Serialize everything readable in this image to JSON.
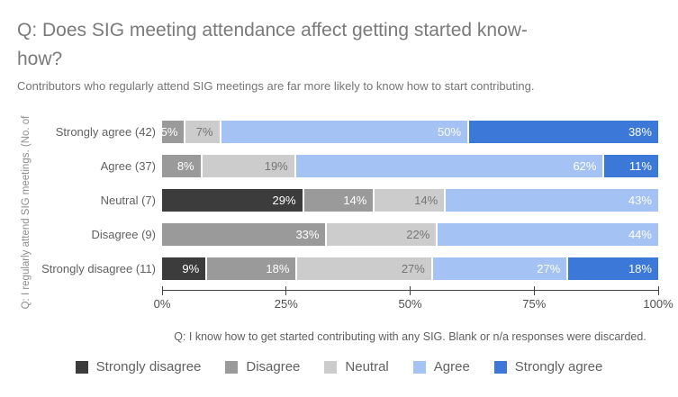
{
  "title_line1": "Q: Does SIG meeting attendance affect getting started know-",
  "title_line2": "how?",
  "subtitle": "Contributors who regularly attend SIG meetings are far more likely to know how to start contributing.",
  "y_axis_title": "Q: I regularly attend SIG meetings. (No. of",
  "caption": "Q: I know how to get started contributing with any SIG. Blank or n/a responses were discarded.",
  "colors": {
    "strongly_disagree": "#3c3c3c",
    "disagree": "#9a9a9a",
    "neutral": "#cccccc",
    "agree": "#a4c2f4",
    "strongly_agree": "#3b78d8",
    "axis_line": "#424242",
    "background": "#ffffff"
  },
  "legend": [
    {
      "key": "strongly_disagree",
      "label": "Strongly disagree"
    },
    {
      "key": "disagree",
      "label": "Disagree"
    },
    {
      "key": "neutral",
      "label": "Neutral"
    },
    {
      "key": "agree",
      "label": "Agree"
    },
    {
      "key": "strongly_agree",
      "label": "Strongly agree"
    }
  ],
  "chart_data": {
    "type": "bar",
    "orientation": "horizontal",
    "stacked": true,
    "unit": "percent",
    "xlim": [
      0,
      100
    ],
    "x_ticks": [
      "0%",
      "25%",
      "50%",
      "75%",
      "100%"
    ],
    "categories": [
      "Strongly agree (42)",
      "Agree (37)",
      "Neutral (7)",
      "Disagree (9)",
      "Strongly disagree (11)"
    ],
    "legend_position": "bottom",
    "rows": [
      {
        "label": "Strongly agree (42)",
        "segments": [
          {
            "series": "disagree",
            "pct_label": "5%",
            "value": 4.8
          },
          {
            "series": "neutral",
            "pct_label": "7%",
            "value": 7.1
          },
          {
            "series": "agree",
            "pct_label": "50%",
            "value": 50.0
          },
          {
            "series": "strongly_agree",
            "pct_label": "38%",
            "value": 38.1
          }
        ]
      },
      {
        "label": "Agree (37)",
        "segments": [
          {
            "series": "disagree",
            "pct_label": "8%",
            "value": 8.1
          },
          {
            "series": "neutral",
            "pct_label": "19%",
            "value": 18.9
          },
          {
            "series": "agree",
            "pct_label": "62%",
            "value": 62.2
          },
          {
            "series": "strongly_agree",
            "pct_label": "11%",
            "value": 10.8
          }
        ]
      },
      {
        "label": "Neutral (7)",
        "segments": [
          {
            "series": "strongly_disagree",
            "pct_label": "29%",
            "value": 28.6
          },
          {
            "series": "disagree",
            "pct_label": "14%",
            "value": 14.3
          },
          {
            "series": "neutral",
            "pct_label": "14%",
            "value": 14.3
          },
          {
            "series": "agree",
            "pct_label": "43%",
            "value": 42.8
          }
        ]
      },
      {
        "label": "Disagree (9)",
        "segments": [
          {
            "series": "disagree",
            "pct_label": "33%",
            "value": 33.3
          },
          {
            "series": "neutral",
            "pct_label": "22%",
            "value": 22.3
          },
          {
            "series": "agree",
            "pct_label": "44%",
            "value": 44.4
          }
        ]
      },
      {
        "label": "Strongly disagree (11)",
        "segments": [
          {
            "series": "strongly_disagree",
            "pct_label": "9%",
            "value": 9.1
          },
          {
            "series": "disagree",
            "pct_label": "18%",
            "value": 18.2
          },
          {
            "series": "neutral",
            "pct_label": "27%",
            "value": 27.3
          },
          {
            "series": "agree",
            "pct_label": "27%",
            "value": 27.3
          },
          {
            "series": "strongly_agree",
            "pct_label": "18%",
            "value": 18.1
          }
        ]
      }
    ]
  }
}
